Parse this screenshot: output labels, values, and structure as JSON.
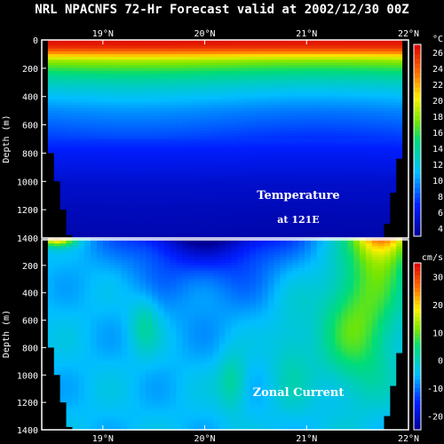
{
  "title": "NRL NPACNFS 72-Hr Forecast valid at 2002/12/30 00Z",
  "chart_data": [
    {
      "type": "heatmap",
      "variable": "Temperature",
      "annotation_line1": "Temperature",
      "annotation_line2": "at 121E",
      "unit": "°C",
      "ylabel": "Depth (m)",
      "xlim": [
        18.4,
        22.0
      ],
      "ylim": [
        1400,
        0
      ],
      "x_ticks": [
        {
          "value": 19,
          "label": "19°N"
        },
        {
          "value": 20,
          "label": "20°N"
        },
        {
          "value": 21,
          "label": "21°N"
        },
        {
          "value": 22,
          "label": "22°N"
        }
      ],
      "y_ticks": [
        0,
        200,
        400,
        600,
        800,
        1000,
        1200,
        1400
      ],
      "colorbar_levels": [
        4,
        6,
        8,
        10,
        12,
        14,
        16,
        18,
        20,
        22,
        24,
        26
      ],
      "colorbar_range": [
        3,
        27
      ],
      "profile": {
        "depth": [
          0,
          40,
          60,
          80,
          100,
          120,
          150,
          200,
          260,
          320,
          400,
          500,
          600,
          700,
          800,
          900,
          1000,
          1200,
          1400
        ],
        "temp": [
          26.5,
          26,
          25,
          23.5,
          22,
          20,
          18,
          16,
          14,
          12.5,
          11,
          9.5,
          8.5,
          7.5,
          6.5,
          5.8,
          5,
          4.3,
          3.8
        ]
      }
    },
    {
      "type": "heatmap",
      "variable": "Zonal Current",
      "annotation": "Zonal Current",
      "unit": "cm/s",
      "ylabel": "Depth (m)",
      "xlim": [
        18.4,
        22.0
      ],
      "ylim": [
        1400,
        0
      ],
      "x_ticks": [
        {
          "value": 19,
          "label": "19°N"
        },
        {
          "value": 20,
          "label": "20°N"
        },
        {
          "value": 21,
          "label": "21°N"
        },
        {
          "value": 22,
          "label": "22°N"
        }
      ],
      "y_ticks": [
        200,
        400,
        600,
        800,
        1000,
        1200,
        1400
      ],
      "colorbar_levels": [
        -20,
        -10,
        0,
        10,
        20,
        30
      ],
      "colorbar_range": [
        -25,
        35
      ]
    }
  ]
}
